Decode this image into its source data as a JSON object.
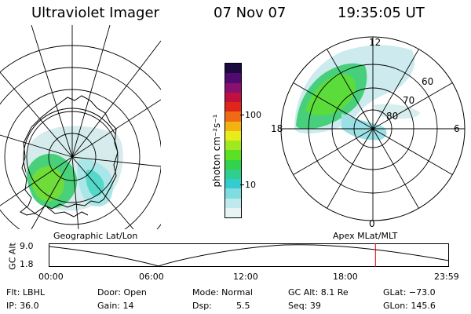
{
  "header": {
    "title": "Ultraviolet Imager",
    "date": "07 Nov 07",
    "time": "19:35:05 UT"
  },
  "left_panel": {
    "label": "Geographic Lat/Lon"
  },
  "right_panel": {
    "label": "Apex MLat/MLT",
    "mlt_labels": {
      "top": "12",
      "left": "18",
      "right": "6",
      "bottom": "0"
    },
    "lat_labels": [
      "60",
      "70",
      "80"
    ]
  },
  "colorbar": {
    "unit_label": "photon cm⁻²s⁻¹",
    "ticks": [
      "100",
      "10"
    ],
    "colors": [
      "#e8f4f4",
      "#bfe9ec",
      "#7fdde0",
      "#35ccd0",
      "#2fcf8e",
      "#33d24b",
      "#5ce024",
      "#a0e820",
      "#e8ec1a",
      "#f2b20f",
      "#ef6a12",
      "#e0251a",
      "#c01040",
      "#8a1070",
      "#500a70",
      "#1a0a40"
    ]
  },
  "altitude_plot": {
    "ylabel": "GC Alt",
    "yticks": [
      "9.0",
      "1.8"
    ],
    "xticks": [
      "00:00",
      "06:00",
      "12:00",
      "18:00",
      "23:59"
    ],
    "current_time_fraction": 0.8163
  },
  "info": {
    "flt": "Flt: LBHL",
    "ip": "IP: 36.0",
    "door": "Door: Open",
    "gain": "Gain: 14",
    "mode": "Mode: Normal",
    "dsp_label": "Dsp:",
    "dsp_value": "5.5",
    "gcalt": "GC Alt: 8.1 Re",
    "seq": "Seq: 39",
    "glat": "GLat: −73.0",
    "glon": "GLon: 145.6"
  }
}
